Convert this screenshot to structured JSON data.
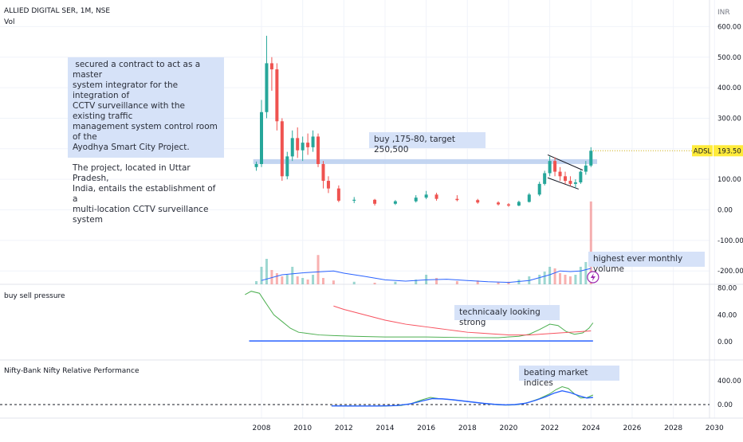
{
  "header": {
    "symbol_line": "ALLIED DIGITAL SER, 1M, NSE",
    "vol_label": "Vol",
    "currency": "INR"
  },
  "axes": {
    "price_ticks": [
      "600.00",
      "500.00",
      "400.00",
      "300.00",
      "200.00",
      "100.00",
      "0.00",
      "-100.00",
      "-200.00"
    ],
    "osc_ticks": [
      "80.00",
      "40.00",
      "0.00"
    ],
    "rel_ticks": [
      "400.00",
      "0.00"
    ],
    "year_ticks": [
      "2008",
      "2010",
      "2012",
      "2014",
      "2016",
      "2018",
      "2020",
      "2022",
      "2024",
      "2026",
      "2028",
      "2030"
    ]
  },
  "price_tag": {
    "symbol": "ADSL",
    "value": "193.50"
  },
  "annotations": {
    "contract_note": " secured a contract to act as a master\nsystem integrator for the integration of\nCCTV surveillance with the existing traffic\nmanagement system control room of the\nAyodhya Smart City Project.\n\nThe project, located in Uttar Pradesh,\nIndia, entails the establishment of a\nmulti-location CCTV surveillance system",
    "buy_note": "buy ,175-80, target 250,500",
    "volume_note": "highest ever monthly volume",
    "strong_note": "technicaaly looking strong",
    "market_note": "beating market  indices"
  },
  "panes": {
    "pressure_title": "buy sell pressure",
    "relative_title": "Nifty-Bank Nifty Relative Performance"
  },
  "colors": {
    "up": "#26a69a",
    "down": "#ef5350",
    "volume_ma": "#2962ff",
    "pressure_green": "#4caf50",
    "pressure_red": "#f7525f",
    "baseline": "#2962ff",
    "support_band": "#bcd0f0",
    "price_tag_bg": "#ffeb3b",
    "note_bg": "#d6e2f8",
    "flash_icon": "#9c27b0"
  },
  "chart_data": {
    "type": "candlestick",
    "interval": "1M",
    "exchange": "NSE",
    "price_ylim": [
      -230,
      630
    ],
    "last_price": 193.5,
    "support_level": 158,
    "candles": [
      {
        "date": "2007.75",
        "o": 140,
        "h": 158,
        "l": 128,
        "c": 150
      },
      {
        "date": "2008.0",
        "o": 150,
        "h": 360,
        "l": 140,
        "c": 320
      },
      {
        "date": "2008.25",
        "o": 320,
        "h": 570,
        "l": 300,
        "c": 480
      },
      {
        "date": "2008.5",
        "o": 480,
        "h": 500,
        "l": 390,
        "c": 460
      },
      {
        "date": "2008.75",
        "o": 460,
        "h": 480,
        "l": 260,
        "c": 290
      },
      {
        "date": "2009.0",
        "o": 290,
        "h": 300,
        "l": 95,
        "c": 110
      },
      {
        "date": "2009.25",
        "o": 110,
        "h": 190,
        "l": 100,
        "c": 175
      },
      {
        "date": "2009.5",
        "o": 175,
        "h": 260,
        "l": 160,
        "c": 235
      },
      {
        "date": "2009.75",
        "o": 235,
        "h": 270,
        "l": 170,
        "c": 195
      },
      {
        "date": "2010.0",
        "o": 195,
        "h": 240,
        "l": 160,
        "c": 220
      },
      {
        "date": "2010.25",
        "o": 220,
        "h": 250,
        "l": 180,
        "c": 205
      },
      {
        "date": "2010.5",
        "o": 205,
        "h": 260,
        "l": 190,
        "c": 240
      },
      {
        "date": "2010.75",
        "o": 240,
        "h": 250,
        "l": 140,
        "c": 150
      },
      {
        "date": "2011.0",
        "o": 150,
        "h": 160,
        "l": 70,
        "c": 95
      },
      {
        "date": "2011.25",
        "o": 95,
        "h": 110,
        "l": 55,
        "c": 70
      },
      {
        "date": "2011.75",
        "o": 70,
        "h": 80,
        "l": 25,
        "c": 30
      },
      {
        "date": "2012.5",
        "o": 30,
        "h": 42,
        "l": 22,
        "c": 33
      },
      {
        "date": "2013.5",
        "o": 33,
        "h": 36,
        "l": 14,
        "c": 20
      },
      {
        "date": "2014.5",
        "o": 20,
        "h": 32,
        "l": 16,
        "c": 28
      },
      {
        "date": "2015.5",
        "o": 28,
        "h": 48,
        "l": 24,
        "c": 40
      },
      {
        "date": "2016.0",
        "o": 40,
        "h": 62,
        "l": 35,
        "c": 50
      },
      {
        "date": "2016.5",
        "o": 50,
        "h": 56,
        "l": 30,
        "c": 36
      },
      {
        "date": "2017.5",
        "o": 36,
        "h": 48,
        "l": 28,
        "c": 32
      },
      {
        "date": "2018.5",
        "o": 32,
        "h": 36,
        "l": 20,
        "c": 24
      },
      {
        "date": "2019.5",
        "o": 24,
        "h": 28,
        "l": 14,
        "c": 18
      },
      {
        "date": "2020.0",
        "o": 18,
        "h": 22,
        "l": 10,
        "c": 14
      },
      {
        "date": "2020.5",
        "o": 14,
        "h": 30,
        "l": 12,
        "c": 26
      },
      {
        "date": "2021.0",
        "o": 26,
        "h": 55,
        "l": 24,
        "c": 50
      },
      {
        "date": "2021.5",
        "o": 50,
        "h": 92,
        "l": 45,
        "c": 85
      },
      {
        "date": "2021.75",
        "o": 85,
        "h": 128,
        "l": 80,
        "c": 120
      },
      {
        "date": "2022.0",
        "o": 120,
        "h": 175,
        "l": 110,
        "c": 160
      },
      {
        "date": "2022.25",
        "o": 160,
        "h": 172,
        "l": 110,
        "c": 125
      },
      {
        "date": "2022.5",
        "o": 125,
        "h": 140,
        "l": 95,
        "c": 110
      },
      {
        "date": "2022.75",
        "o": 110,
        "h": 125,
        "l": 85,
        "c": 95
      },
      {
        "date": "2023.0",
        "o": 95,
        "h": 110,
        "l": 78,
        "c": 85
      },
      {
        "date": "2023.25",
        "o": 85,
        "h": 100,
        "l": 72,
        "c": 90
      },
      {
        "date": "2023.5",
        "o": 90,
        "h": 130,
        "l": 85,
        "c": 125
      },
      {
        "date": "2023.75",
        "o": 125,
        "h": 160,
        "l": 115,
        "c": 145
      },
      {
        "date": "2024.0",
        "o": 145,
        "h": 205,
        "l": 140,
        "c": 193.5
      }
    ],
    "volume_bars": [
      {
        "date": "2007.75",
        "v": 0.1,
        "up": true
      },
      {
        "date": "2008.0",
        "v": 0.55,
        "up": true
      },
      {
        "date": "2008.25",
        "v": 0.8,
        "up": true
      },
      {
        "date": "2008.5",
        "v": 0.45,
        "up": false
      },
      {
        "date": "2008.75",
        "v": 0.35,
        "up": false
      },
      {
        "date": "2009.0",
        "v": 0.25,
        "up": false
      },
      {
        "date": "2009.25",
        "v": 0.3,
        "up": true
      },
      {
        "date": "2009.5",
        "v": 0.55,
        "up": true
      },
      {
        "date": "2009.75",
        "v": 0.25,
        "up": false
      },
      {
        "date": "2010.0",
        "v": 0.2,
        "up": true
      },
      {
        "date": "2010.25",
        "v": 0.15,
        "up": false
      },
      {
        "date": "2010.5",
        "v": 0.3,
        "up": true
      },
      {
        "date": "2010.75",
        "v": 0.92,
        "up": false
      },
      {
        "date": "2011.0",
        "v": 0.2,
        "up": false
      },
      {
        "date": "2011.5",
        "v": 0.12,
        "up": false
      },
      {
        "date": "2012.5",
        "v": 0.08,
        "up": true
      },
      {
        "date": "2013.5",
        "v": 0.05,
        "up": false
      },
      {
        "date": "2014.5",
        "v": 0.08,
        "up": true
      },
      {
        "date": "2015.5",
        "v": 0.15,
        "up": true
      },
      {
        "date": "2016.0",
        "v": 0.3,
        "up": true
      },
      {
        "date": "2016.5",
        "v": 0.2,
        "up": false
      },
      {
        "date": "2017.5",
        "v": 0.1,
        "up": false
      },
      {
        "date": "2018.5",
        "v": 0.12,
        "up": false
      },
      {
        "date": "2019.5",
        "v": 0.06,
        "up": false
      },
      {
        "date": "2020.0",
        "v": 0.08,
        "up": false
      },
      {
        "date": "2020.5",
        "v": 0.15,
        "up": true
      },
      {
        "date": "2021.0",
        "v": 0.25,
        "up": true
      },
      {
        "date": "2021.5",
        "v": 0.3,
        "up": true
      },
      {
        "date": "2021.75",
        "v": 0.4,
        "up": true
      },
      {
        "date": "2022.0",
        "v": 0.55,
        "up": true
      },
      {
        "date": "2022.25",
        "v": 0.5,
        "up": false
      },
      {
        "date": "2022.5",
        "v": 0.35,
        "up": false
      },
      {
        "date": "2022.75",
        "v": 0.3,
        "up": false
      },
      {
        "date": "2023.0",
        "v": 0.25,
        "up": false
      },
      {
        "date": "2023.25",
        "v": 0.3,
        "up": true
      },
      {
        "date": "2023.5",
        "v": 0.55,
        "up": true
      },
      {
        "date": "2023.75",
        "v": 0.7,
        "up": true
      },
      {
        "date": "2024.0",
        "v": 2.6,
        "up": false
      }
    ],
    "volume_ma": [
      [
        2008.0,
        0.12
      ],
      [
        2009.0,
        0.3
      ],
      [
        2010.0,
        0.36
      ],
      [
        2011.0,
        0.4
      ],
      [
        2011.5,
        0.42
      ],
      [
        2012.0,
        0.35
      ],
      [
        2013.0,
        0.25
      ],
      [
        2014.0,
        0.14
      ],
      [
        2015.0,
        0.1
      ],
      [
        2016.0,
        0.14
      ],
      [
        2017.0,
        0.16
      ],
      [
        2018.0,
        0.12
      ],
      [
        2019.0,
        0.08
      ],
      [
        2020.0,
        0.06
      ],
      [
        2021.0,
        0.12
      ],
      [
        2022.0,
        0.3
      ],
      [
        2022.5,
        0.42
      ],
      [
        2023.0,
        0.4
      ],
      [
        2023.5,
        0.42
      ],
      [
        2024.0,
        0.5
      ]
    ],
    "pressure": {
      "ylim": [
        -5,
        85
      ],
      "green": [
        [
          2007.2,
          70
        ],
        [
          2007.5,
          75
        ],
        [
          2007.9,
          72
        ],
        [
          2008.2,
          58
        ],
        [
          2008.6,
          40
        ],
        [
          2009.0,
          30
        ],
        [
          2009.4,
          20
        ],
        [
          2009.8,
          14
        ],
        [
          2010.3,
          12
        ],
        [
          2010.8,
          10
        ],
        [
          2011.5,
          9
        ],
        [
          2012.5,
          8
        ],
        [
          2014.0,
          7
        ],
        [
          2016.0,
          7
        ],
        [
          2018.0,
          6
        ],
        [
          2019.5,
          6
        ],
        [
          2020.5,
          8
        ],
        [
          2021.0,
          11
        ],
        [
          2021.5,
          18
        ],
        [
          2022.0,
          26
        ],
        [
          2022.4,
          24
        ],
        [
          2022.8,
          15
        ],
        [
          2023.2,
          11
        ],
        [
          2023.6,
          13
        ],
        [
          2023.9,
          20
        ],
        [
          2024.1,
          28
        ]
      ],
      "red": [
        [
          2011.5,
          53
        ],
        [
          2012.0,
          48
        ],
        [
          2012.5,
          44
        ],
        [
          2013.0,
          40
        ],
        [
          2013.5,
          36
        ],
        [
          2014.0,
          32
        ],
        [
          2014.5,
          29
        ],
        [
          2015.0,
          26
        ],
        [
          2015.5,
          24
        ],
        [
          2016.0,
          22
        ],
        [
          2016.5,
          20
        ],
        [
          2017.0,
          18
        ],
        [
          2017.5,
          16
        ],
        [
          2018.0,
          14
        ],
        [
          2018.5,
          13
        ],
        [
          2019.0,
          12
        ],
        [
          2019.5,
          11
        ],
        [
          2020.0,
          10
        ],
        [
          2020.5,
          10
        ],
        [
          2021.0,
          10
        ],
        [
          2021.5,
          11
        ],
        [
          2022.0,
          12
        ],
        [
          2022.5,
          13
        ],
        [
          2023.0,
          14
        ],
        [
          2023.5,
          15
        ],
        [
          2024.0,
          16
        ]
      ],
      "baseline": 1
    },
    "relative": {
      "ylim": [
        -80,
        460
      ],
      "green": [
        [
          2011.4,
          -20
        ],
        [
          2012.0,
          -22
        ],
        [
          2013.0,
          -25
        ],
        [
          2014.0,
          -25
        ],
        [
          2014.8,
          -15
        ],
        [
          2015.3,
          20
        ],
        [
          2015.8,
          80
        ],
        [
          2016.2,
          120
        ],
        [
          2016.6,
          100
        ],
        [
          2017.0,
          90
        ],
        [
          2017.5,
          70
        ],
        [
          2018.0,
          50
        ],
        [
          2018.5,
          30
        ],
        [
          2019.0,
          10
        ],
        [
          2019.5,
          -5
        ],
        [
          2020.0,
          -10
        ],
        [
          2020.5,
          0
        ],
        [
          2021.0,
          40
        ],
        [
          2021.5,
          100
        ],
        [
          2022.0,
          180
        ],
        [
          2022.3,
          250
        ],
        [
          2022.6,
          300
        ],
        [
          2022.9,
          270
        ],
        [
          2023.2,
          180
        ],
        [
          2023.5,
          110
        ],
        [
          2023.8,
          115
        ],
        [
          2024.1,
          160
        ]
      ],
      "blue": [
        [
          2011.4,
          -22
        ],
        [
          2012.5,
          -24
        ],
        [
          2013.5,
          -24
        ],
        [
          2014.5,
          -18
        ],
        [
          2015.2,
          10
        ],
        [
          2015.8,
          60
        ],
        [
          2016.3,
          100
        ],
        [
          2016.8,
          95
        ],
        [
          2017.3,
          80
        ],
        [
          2017.8,
          60
        ],
        [
          2018.3,
          40
        ],
        [
          2018.8,
          20
        ],
        [
          2019.3,
          5
        ],
        [
          2019.8,
          -5
        ],
        [
          2020.3,
          0
        ],
        [
          2020.8,
          20
        ],
        [
          2021.3,
          70
        ],
        [
          2021.8,
          130
        ],
        [
          2022.2,
          190
        ],
        [
          2022.6,
          230
        ],
        [
          2023.0,
          200
        ],
        [
          2023.4,
          150
        ],
        [
          2023.8,
          110
        ],
        [
          2024.1,
          120
        ]
      ]
    }
  }
}
